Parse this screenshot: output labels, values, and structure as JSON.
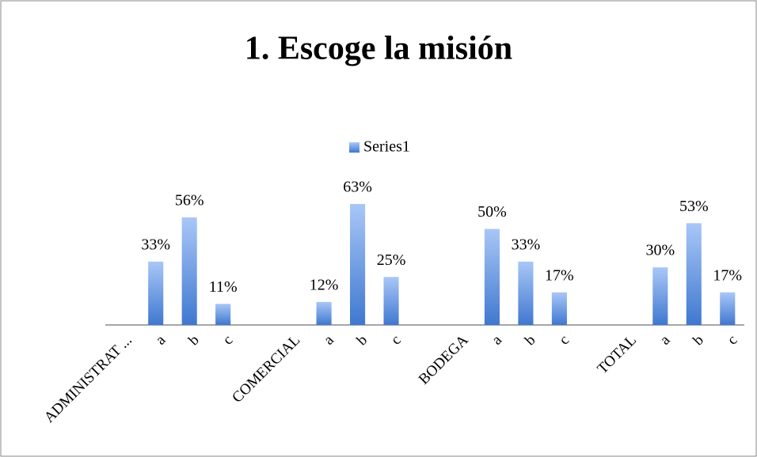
{
  "chart_data": {
    "type": "bar",
    "title": "1. Escoge la misión",
    "categories": [
      "ADMINISTRAT ...",
      "a",
      "b",
      "c",
      null,
      "COMERCIAL",
      "a",
      "b",
      "c",
      null,
      "BODEGA",
      "a",
      "b",
      "c",
      null,
      "TOTAL",
      "a",
      "b",
      "c"
    ],
    "series": [
      {
        "name": "Series1",
        "color": "#4a86e8",
        "values": [
          null,
          33,
          56,
          11,
          null,
          null,
          12,
          63,
          25,
          null,
          null,
          50,
          33,
          17,
          null,
          null,
          30,
          53,
          17
        ],
        "value_labels": [
          null,
          "33%",
          "56%",
          "11%",
          null,
          null,
          "12%",
          "63%",
          "25%",
          null,
          null,
          "50%",
          "33%",
          "17%",
          null,
          null,
          "30%",
          "53%",
          "17%"
        ]
      }
    ],
    "ylim": [
      0,
      70
    ],
    "legend": "top"
  }
}
